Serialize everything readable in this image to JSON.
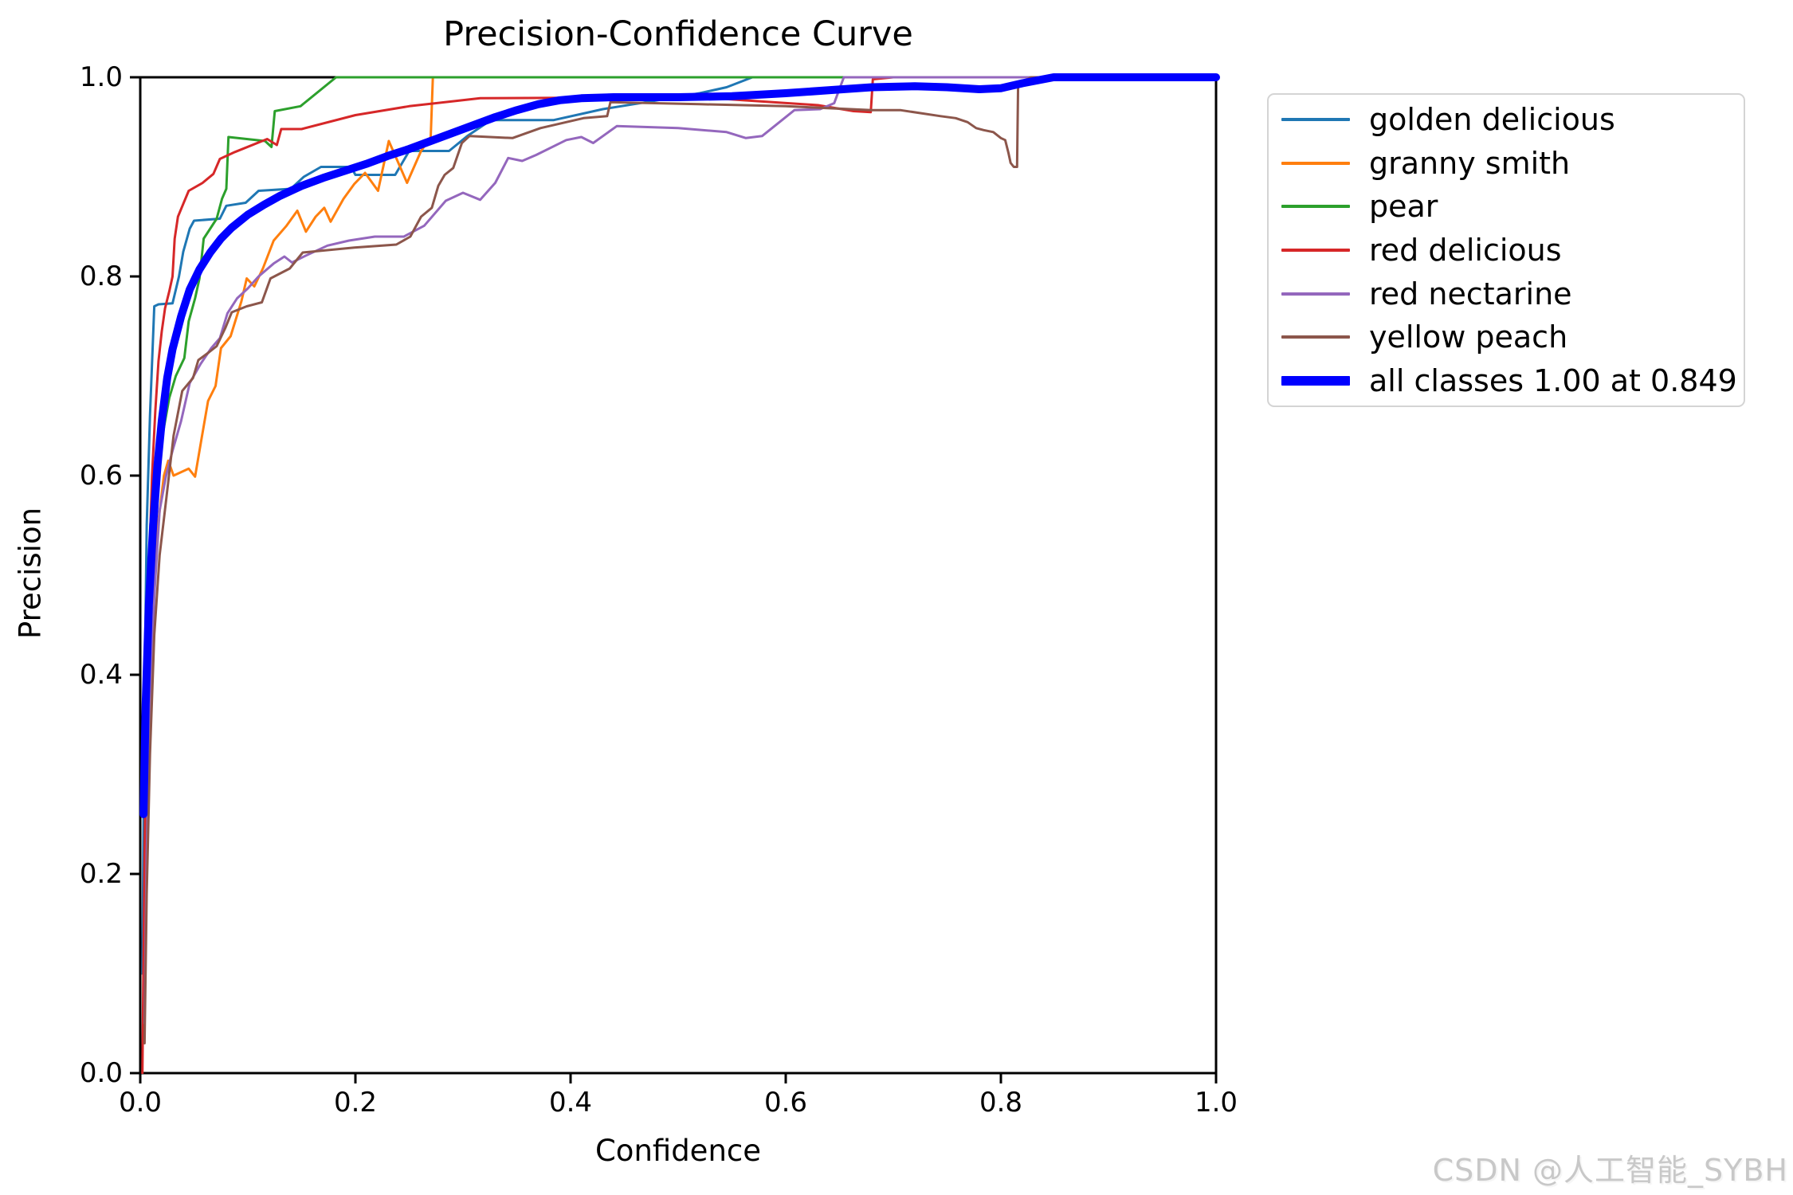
{
  "figure": {
    "watermark": "CSDN @人工智能_SYBH"
  },
  "chart_data": {
    "type": "line",
    "title": "Precision-Confidence Curve",
    "xlabel": "Confidence",
    "ylabel": "Precision",
    "xlim": [
      0.0,
      1.0
    ],
    "ylim": [
      0.0,
      1.0
    ],
    "xticks": [
      "0.0",
      "0.2",
      "0.4",
      "0.6",
      "0.8",
      "1.0"
    ],
    "yticks": [
      "0.0",
      "0.2",
      "0.4",
      "0.6",
      "0.8",
      "1.0"
    ],
    "grid": false,
    "legend_position": "outside-upper-right",
    "best_all_classes": {
      "precision": 1.0,
      "confidence": 0.849
    },
    "series": [
      {
        "name": "golden delicious",
        "color": "#1f77b4",
        "line_width": 3,
        "points": [
          [
            0.002,
            0.1
          ],
          [
            0.004,
            0.38
          ],
          [
            0.006,
            0.55
          ],
          [
            0.009,
            0.66
          ],
          [
            0.013,
            0.77
          ],
          [
            0.017,
            0.772
          ],
          [
            0.03,
            0.773
          ],
          [
            0.036,
            0.8
          ],
          [
            0.04,
            0.825
          ],
          [
            0.046,
            0.848
          ],
          [
            0.05,
            0.856
          ],
          [
            0.074,
            0.858
          ],
          [
            0.08,
            0.871
          ],
          [
            0.098,
            0.874
          ],
          [
            0.11,
            0.886
          ],
          [
            0.14,
            0.888
          ],
          [
            0.152,
            0.9
          ],
          [
            0.168,
            0.91
          ],
          [
            0.196,
            0.91
          ],
          [
            0.2,
            0.902
          ],
          [
            0.237,
            0.902
          ],
          [
            0.25,
            0.926
          ],
          [
            0.287,
            0.926
          ],
          [
            0.304,
            0.941
          ],
          [
            0.326,
            0.957
          ],
          [
            0.384,
            0.957
          ],
          [
            0.43,
            0.968
          ],
          [
            0.47,
            0.975
          ],
          [
            0.52,
            0.984
          ],
          [
            0.545,
            0.99
          ],
          [
            0.569,
            1.0
          ],
          [
            1.0,
            1.0
          ]
        ]
      },
      {
        "name": "granny smith",
        "color": "#ff7f0e",
        "line_width": 3,
        "points": [
          [
            0.003,
            0.08
          ],
          [
            0.005,
            0.28
          ],
          [
            0.008,
            0.42
          ],
          [
            0.012,
            0.5
          ],
          [
            0.017,
            0.555
          ],
          [
            0.022,
            0.6
          ],
          [
            0.026,
            0.615
          ],
          [
            0.031,
            0.6
          ],
          [
            0.045,
            0.607
          ],
          [
            0.051,
            0.599
          ],
          [
            0.057,
            0.637
          ],
          [
            0.063,
            0.675
          ],
          [
            0.07,
            0.69
          ],
          [
            0.075,
            0.728
          ],
          [
            0.084,
            0.74
          ],
          [
            0.094,
            0.775
          ],
          [
            0.099,
            0.798
          ],
          [
            0.106,
            0.79
          ],
          [
            0.114,
            0.808
          ],
          [
            0.124,
            0.836
          ],
          [
            0.136,
            0.851
          ],
          [
            0.146,
            0.866
          ],
          [
            0.154,
            0.845
          ],
          [
            0.163,
            0.86
          ],
          [
            0.171,
            0.869
          ],
          [
            0.177,
            0.855
          ],
          [
            0.189,
            0.878
          ],
          [
            0.199,
            0.893
          ],
          [
            0.209,
            0.904
          ],
          [
            0.221,
            0.886
          ],
          [
            0.231,
            0.936
          ],
          [
            0.248,
            0.894
          ],
          [
            0.261,
            0.926
          ],
          [
            0.27,
            0.94
          ],
          [
            0.272,
            1.0
          ],
          [
            1.0,
            1.0
          ]
        ]
      },
      {
        "name": "pear",
        "color": "#2ca02c",
        "line_width": 3,
        "points": [
          [
            0.003,
            0.08
          ],
          [
            0.005,
            0.3
          ],
          [
            0.008,
            0.44
          ],
          [
            0.011,
            0.55
          ],
          [
            0.015,
            0.615
          ],
          [
            0.021,
            0.642
          ],
          [
            0.027,
            0.678
          ],
          [
            0.033,
            0.7
          ],
          [
            0.041,
            0.718
          ],
          [
            0.045,
            0.755
          ],
          [
            0.051,
            0.778
          ],
          [
            0.055,
            0.798
          ],
          [
            0.059,
            0.838
          ],
          [
            0.065,
            0.848
          ],
          [
            0.071,
            0.858
          ],
          [
            0.076,
            0.878
          ],
          [
            0.08,
            0.888
          ],
          [
            0.082,
            0.94
          ],
          [
            0.116,
            0.936
          ],
          [
            0.122,
            0.93
          ],
          [
            0.125,
            0.966
          ],
          [
            0.149,
            0.971
          ],
          [
            0.182,
            1.0
          ],
          [
            1.0,
            1.0
          ]
        ]
      },
      {
        "name": "red delicious",
        "color": "#d62728",
        "line_width": 3,
        "points": [
          [
            0.002,
            0.0
          ],
          [
            0.004,
            0.22
          ],
          [
            0.006,
            0.38
          ],
          [
            0.008,
            0.5
          ],
          [
            0.011,
            0.6
          ],
          [
            0.014,
            0.665
          ],
          [
            0.017,
            0.715
          ],
          [
            0.02,
            0.745
          ],
          [
            0.023,
            0.768
          ],
          [
            0.027,
            0.785
          ],
          [
            0.03,
            0.8
          ],
          [
            0.032,
            0.838
          ],
          [
            0.035,
            0.86
          ],
          [
            0.04,
            0.873
          ],
          [
            0.045,
            0.886
          ],
          [
            0.058,
            0.894
          ],
          [
            0.068,
            0.903
          ],
          [
            0.074,
            0.918
          ],
          [
            0.088,
            0.925
          ],
          [
            0.118,
            0.938
          ],
          [
            0.127,
            0.932
          ],
          [
            0.131,
            0.948
          ],
          [
            0.15,
            0.948
          ],
          [
            0.2,
            0.962
          ],
          [
            0.25,
            0.971
          ],
          [
            0.316,
            0.979
          ],
          [
            0.52,
            0.98
          ],
          [
            0.56,
            0.977
          ],
          [
            0.63,
            0.972
          ],
          [
            0.663,
            0.966
          ],
          [
            0.679,
            0.965
          ],
          [
            0.681,
            0.998
          ],
          [
            0.7,
            1.0
          ],
          [
            1.0,
            1.0
          ]
        ]
      },
      {
        "name": "red nectarine",
        "color": "#9467bd",
        "line_width": 3,
        "points": [
          [
            0.004,
            0.05
          ],
          [
            0.006,
            0.22
          ],
          [
            0.009,
            0.36
          ],
          [
            0.013,
            0.48
          ],
          [
            0.018,
            0.565
          ],
          [
            0.024,
            0.6
          ],
          [
            0.03,
            0.625
          ],
          [
            0.038,
            0.655
          ],
          [
            0.046,
            0.693
          ],
          [
            0.056,
            0.712
          ],
          [
            0.066,
            0.728
          ],
          [
            0.074,
            0.738
          ],
          [
            0.081,
            0.763
          ],
          [
            0.09,
            0.778
          ],
          [
            0.1,
            0.788
          ],
          [
            0.11,
            0.8
          ],
          [
            0.124,
            0.813
          ],
          [
            0.134,
            0.82
          ],
          [
            0.141,
            0.814
          ],
          [
            0.154,
            0.821
          ],
          [
            0.174,
            0.831
          ],
          [
            0.194,
            0.836
          ],
          [
            0.218,
            0.84
          ],
          [
            0.245,
            0.84
          ],
          [
            0.264,
            0.851
          ],
          [
            0.284,
            0.876
          ],
          [
            0.3,
            0.884
          ],
          [
            0.316,
            0.877
          ],
          [
            0.33,
            0.894
          ],
          [
            0.342,
            0.919
          ],
          [
            0.355,
            0.916
          ],
          [
            0.368,
            0.922
          ],
          [
            0.396,
            0.937
          ],
          [
            0.41,
            0.94
          ],
          [
            0.421,
            0.934
          ],
          [
            0.443,
            0.951
          ],
          [
            0.5,
            0.949
          ],
          [
            0.545,
            0.945
          ],
          [
            0.563,
            0.939
          ],
          [
            0.578,
            0.941
          ],
          [
            0.608,
            0.967
          ],
          [
            0.632,
            0.968
          ],
          [
            0.645,
            0.974
          ],
          [
            0.654,
            1.0
          ],
          [
            1.0,
            1.0
          ]
        ]
      },
      {
        "name": "yellow peach",
        "color": "#8c564b",
        "line_width": 3,
        "points": [
          [
            0.004,
            0.03
          ],
          [
            0.006,
            0.18
          ],
          [
            0.009,
            0.32
          ],
          [
            0.013,
            0.44
          ],
          [
            0.018,
            0.52
          ],
          [
            0.024,
            0.575
          ],
          [
            0.031,
            0.64
          ],
          [
            0.039,
            0.685
          ],
          [
            0.049,
            0.698
          ],
          [
            0.054,
            0.716
          ],
          [
            0.064,
            0.724
          ],
          [
            0.071,
            0.73
          ],
          [
            0.079,
            0.748
          ],
          [
            0.085,
            0.764
          ],
          [
            0.099,
            0.77
          ],
          [
            0.113,
            0.774
          ],
          [
            0.121,
            0.798
          ],
          [
            0.139,
            0.808
          ],
          [
            0.151,
            0.824
          ],
          [
            0.199,
            0.829
          ],
          [
            0.238,
            0.832
          ],
          [
            0.251,
            0.84
          ],
          [
            0.261,
            0.86
          ],
          [
            0.271,
            0.869
          ],
          [
            0.277,
            0.891
          ],
          [
            0.283,
            0.902
          ],
          [
            0.291,
            0.909
          ],
          [
            0.299,
            0.934
          ],
          [
            0.306,
            0.941
          ],
          [
            0.346,
            0.939
          ],
          [
            0.372,
            0.949
          ],
          [
            0.412,
            0.959
          ],
          [
            0.434,
            0.961
          ],
          [
            0.437,
            0.975
          ],
          [
            0.52,
            0.973
          ],
          [
            0.6,
            0.971
          ],
          [
            0.68,
            0.967
          ],
          [
            0.707,
            0.967
          ],
          [
            0.744,
            0.961
          ],
          [
            0.758,
            0.959
          ],
          [
            0.769,
            0.955
          ],
          [
            0.777,
            0.949
          ],
          [
            0.784,
            0.947
          ],
          [
            0.793,
            0.945
          ],
          [
            0.8,
            0.939
          ],
          [
            0.804,
            0.937
          ],
          [
            0.807,
            0.924
          ],
          [
            0.809,
            0.914
          ],
          [
            0.812,
            0.91
          ],
          [
            0.815,
            0.91
          ],
          [
            0.816,
            0.993
          ],
          [
            0.828,
            1.0
          ],
          [
            1.0,
            1.0
          ]
        ]
      },
      {
        "name": "all classes 1.00 at 0.849",
        "color": "#0000ff",
        "line_width": 10,
        "points": [
          [
            0.003,
            0.26
          ],
          [
            0.005,
            0.37
          ],
          [
            0.008,
            0.47
          ],
          [
            0.012,
            0.55
          ],
          [
            0.016,
            0.61
          ],
          [
            0.02,
            0.655
          ],
          [
            0.025,
            0.698
          ],
          [
            0.03,
            0.727
          ],
          [
            0.038,
            0.76
          ],
          [
            0.046,
            0.787
          ],
          [
            0.055,
            0.807
          ],
          [
            0.065,
            0.824
          ],
          [
            0.075,
            0.838
          ],
          [
            0.085,
            0.849
          ],
          [
            0.1,
            0.862
          ],
          [
            0.115,
            0.872
          ],
          [
            0.13,
            0.881
          ],
          [
            0.15,
            0.891
          ],
          [
            0.17,
            0.899
          ],
          [
            0.19,
            0.906
          ],
          [
            0.21,
            0.913
          ],
          [
            0.23,
            0.921
          ],
          [
            0.25,
            0.928
          ],
          [
            0.27,
            0.936
          ],
          [
            0.29,
            0.944
          ],
          [
            0.31,
            0.952
          ],
          [
            0.33,
            0.96
          ],
          [
            0.35,
            0.967
          ],
          [
            0.37,
            0.973
          ],
          [
            0.39,
            0.977
          ],
          [
            0.41,
            0.979
          ],
          [
            0.44,
            0.98
          ],
          [
            0.5,
            0.98
          ],
          [
            0.55,
            0.981
          ],
          [
            0.6,
            0.984
          ],
          [
            0.64,
            0.987
          ],
          [
            0.68,
            0.99
          ],
          [
            0.72,
            0.991
          ],
          [
            0.75,
            0.99
          ],
          [
            0.78,
            0.988
          ],
          [
            0.8,
            0.989
          ],
          [
            0.82,
            0.994
          ],
          [
            0.849,
            1.0
          ],
          [
            1.0,
            1.0
          ]
        ]
      }
    ]
  }
}
